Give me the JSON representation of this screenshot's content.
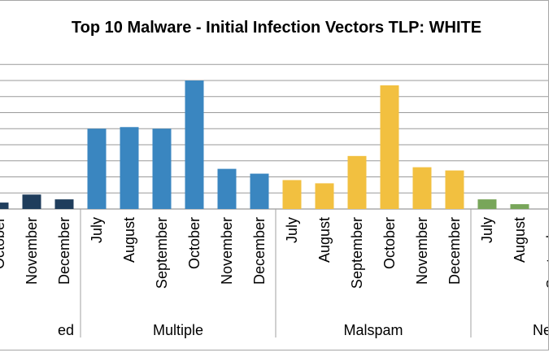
{
  "chart_data": {
    "type": "bar",
    "title": "Top 10 Malware - Initial Infection Vectors TLP: WHITE",
    "xlabel": "",
    "ylabel": "",
    "ylim": [
      0,
      80
    ],
    "grid": true,
    "legend": "none",
    "groups": [
      {
        "name": "ed",
        "color": "#1f3d5c",
        "bars": [
          {
            "label": "October",
            "value": 4
          },
          {
            "label": "November",
            "value": 9
          },
          {
            "label": "December",
            "value": 6
          }
        ]
      },
      {
        "name": "Multiple",
        "color": "#3a86c0",
        "bars": [
          {
            "label": "July",
            "value": 50
          },
          {
            "label": "August",
            "value": 51
          },
          {
            "label": "September",
            "value": 50
          },
          {
            "label": "October",
            "value": 80
          },
          {
            "label": "November",
            "value": 25
          },
          {
            "label": "December",
            "value": 22
          }
        ]
      },
      {
        "name": "Malspam",
        "color": "#f2c040",
        "bars": [
          {
            "label": "July",
            "value": 18
          },
          {
            "label": "August",
            "value": 16
          },
          {
            "label": "September",
            "value": 33
          },
          {
            "label": "October",
            "value": 77
          },
          {
            "label": "November",
            "value": 26
          },
          {
            "label": "December",
            "value": 24
          }
        ]
      },
      {
        "name": "Ne",
        "color": "#78a65a",
        "bars": [
          {
            "label": "July",
            "value": 6
          },
          {
            "label": "August",
            "value": 3
          },
          {
            "label": "September",
            "value": 0
          }
        ]
      }
    ]
  }
}
